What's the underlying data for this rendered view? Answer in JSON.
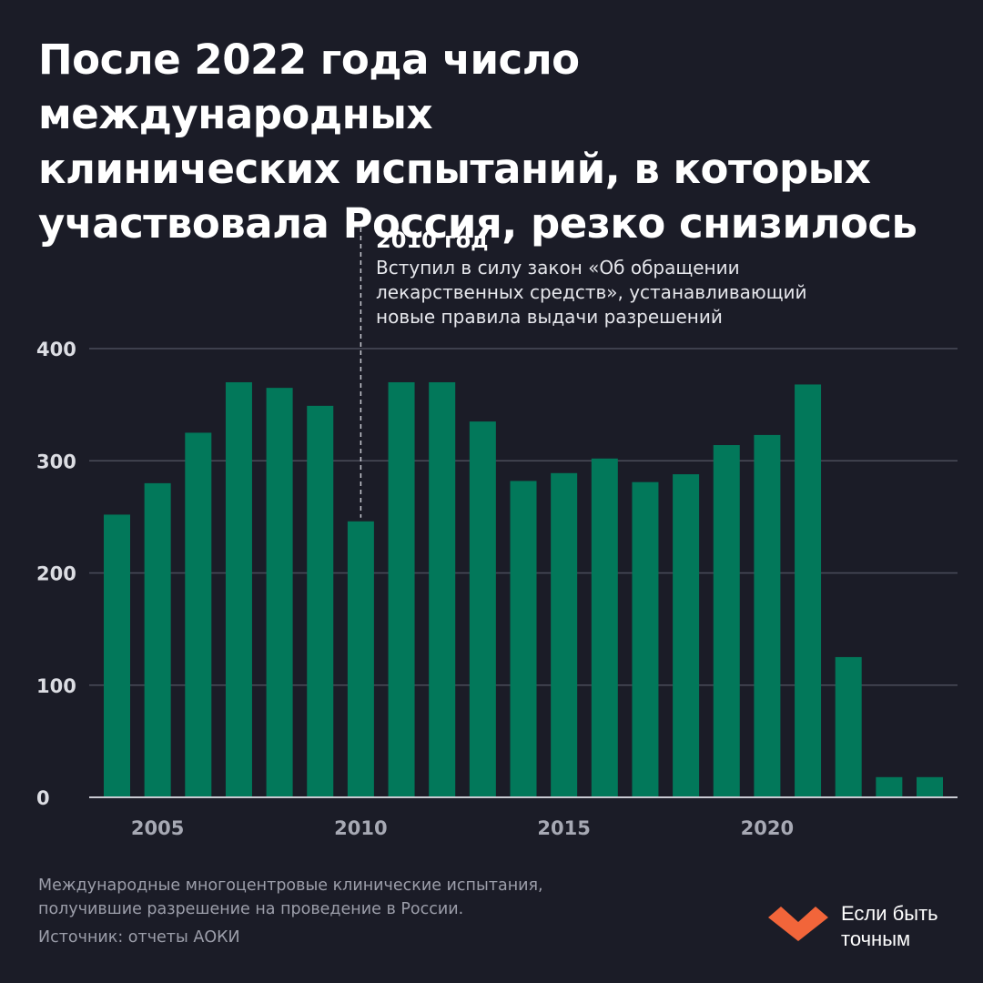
{
  "title": "После 2022 года число международных\nклинических испытаний, в которых\nучаствовала Россия, резко снизилось",
  "annotation": {
    "year_label": "2010 год",
    "lines": [
      "Вступил в силу закон «Об обращении",
      "лекарственных средств», устанавливающий",
      "новые правила выдачи разрешений"
    ],
    "at_year": 2010
  },
  "footnote": "Международные многоцентровые клинические испытания, получившие разрешение на проведение в России.",
  "source": "Источник: отчеты АОКИ",
  "brand": {
    "name": "Если быть точным",
    "logo_icon": "heart-chevron-logo-icon"
  },
  "colors": {
    "background": "#1b1c27",
    "bar": "#02785a",
    "grid": "#4a4c5a",
    "logo": "#f2653a"
  },
  "chart_data": {
    "type": "bar",
    "title": "После 2022 года число международных клинических испытаний, в которых участвовала Россия, резко снизилось",
    "xlabel": "",
    "ylabel": "",
    "categories": [
      2004,
      2005,
      2006,
      2007,
      2008,
      2009,
      2010,
      2011,
      2012,
      2013,
      2014,
      2015,
      2016,
      2017,
      2018,
      2019,
      2020,
      2021,
      2022,
      2023,
      2024
    ],
    "values": [
      252,
      280,
      325,
      370,
      365,
      349,
      246,
      370,
      370,
      335,
      282,
      289,
      302,
      281,
      288,
      314,
      323,
      368,
      125,
      18,
      18
    ],
    "ylim": [
      0,
      400
    ],
    "yticks": [
      0,
      100,
      200,
      300,
      400
    ],
    "xticks": [
      2005,
      2010,
      2015,
      2020
    ],
    "grid": true
  }
}
